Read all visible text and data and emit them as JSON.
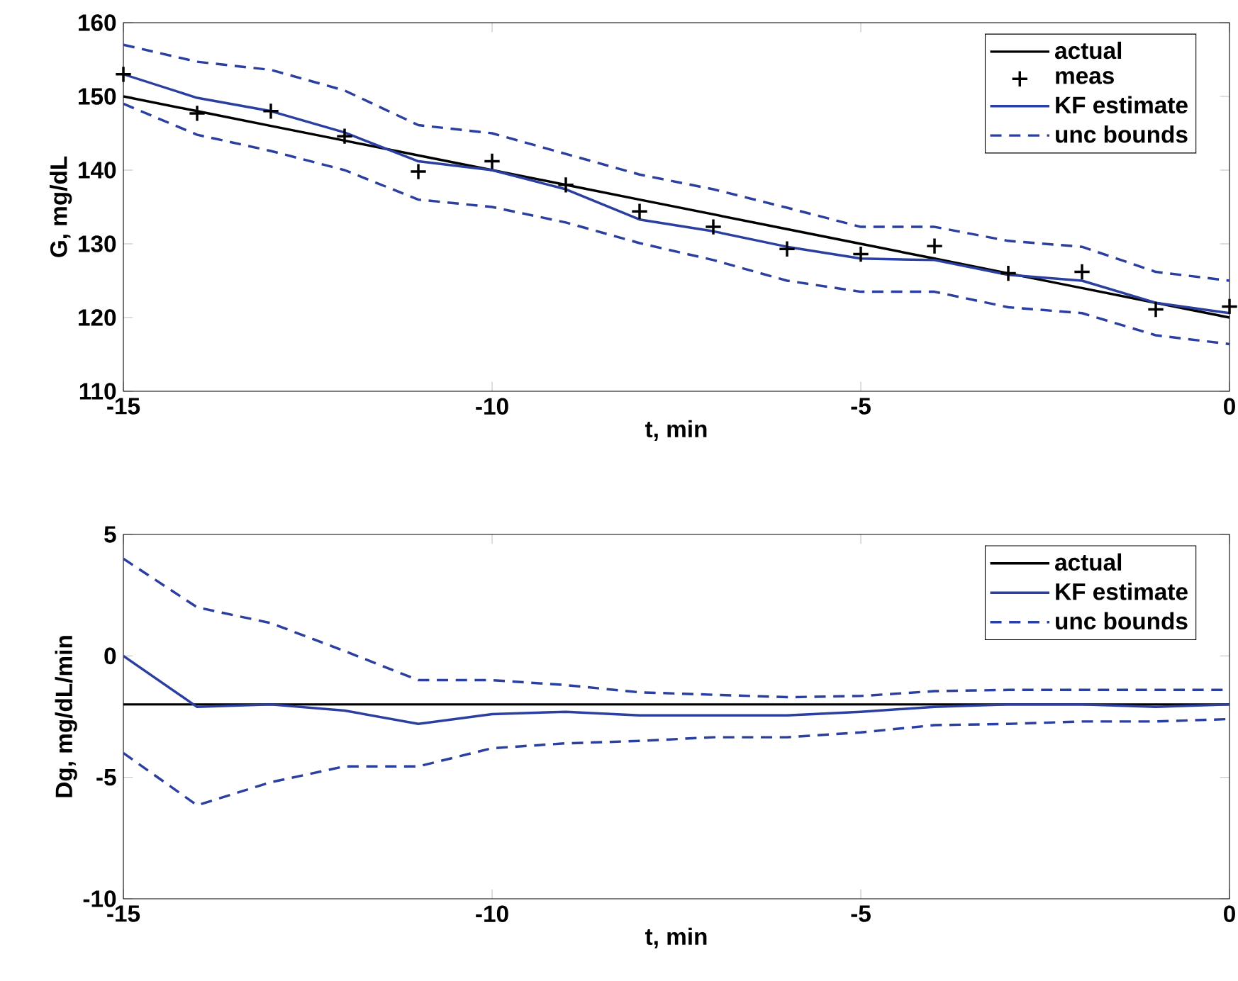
{
  "chart_data": [
    {
      "type": "line",
      "xlabel": "t, min",
      "ylabel": "G, mg/dL",
      "x": [
        -15,
        -14,
        -13,
        -12,
        -11,
        -10,
        -9,
        -8,
        -7,
        -6,
        -5,
        -4,
        -3,
        -2,
        -1,
        0
      ],
      "xlim": [
        -15,
        0
      ],
      "xticks": [
        -15,
        -10,
        -5,
        0
      ],
      "ylim": [
        110,
        160
      ],
      "yticks": [
        110,
        120,
        130,
        140,
        150,
        160
      ],
      "legend": "top right",
      "series": [
        {
          "name": "actual",
          "color": "#000000",
          "line_style": "solid",
          "values": [
            150,
            148,
            146,
            144,
            142,
            140,
            138,
            136,
            134,
            132,
            130,
            128,
            126,
            124,
            122,
            120
          ]
        },
        {
          "name": "meas",
          "type": "scatter",
          "marker": "cross",
          "color": "#000000",
          "values": [
            153,
            147.7,
            148,
            144.6,
            139.8,
            141.2,
            138,
            134.4,
            132.3,
            129.3,
            128.6,
            129.7,
            126,
            126.2,
            121.1,
            121.5
          ]
        },
        {
          "name": "KF estimate",
          "color": "#2b3fa0",
          "line_style": "solid",
          "values": [
            153,
            149.8,
            148,
            145.1,
            141.2,
            140,
            137.4,
            133.3,
            131.7,
            129.6,
            128,
            127.8,
            125.8,
            125,
            122,
            120.6
          ]
        },
        {
          "name": "unc bounds",
          "color": "#2b3fa0",
          "line_style": "dashed",
          "values": [
            157,
            154.7,
            153.6,
            150.8,
            146.1,
            145,
            142.2,
            139.4,
            137.4,
            134.9,
            132.3,
            132.3,
            130.4,
            129.6,
            126.2,
            125
          ]
        },
        {
          "color": "#2b3fa0",
          "line_style": "dashed",
          "values": [
            149,
            144.8,
            142.6,
            140,
            136,
            135,
            132.9,
            130.1,
            127.8,
            125,
            123.5,
            123.5,
            121.4,
            120.6,
            117.6,
            116.4
          ]
        }
      ]
    },
    {
      "type": "line",
      "xlabel": "t, min",
      "ylabel": "Dg, mg/dL/min",
      "x": [
        -15,
        -14,
        -13,
        -12,
        -11,
        -10,
        -9,
        -8,
        -7,
        -6,
        -5,
        -4,
        -3,
        -2,
        -1,
        0
      ],
      "xlim": [
        -15,
        0
      ],
      "xticks": [
        -15,
        -10,
        -5,
        0
      ],
      "ylim": [
        -10,
        5
      ],
      "yticks": [
        -10,
        -5,
        0,
        5
      ],
      "legend": "top right",
      "series": [
        {
          "name": "actual",
          "color": "#000000",
          "line_style": "solid",
          "values": [
            -2,
            -2,
            -2,
            -2,
            -2,
            -2,
            -2,
            -2,
            -2,
            -2,
            -2,
            -2,
            -2,
            -2,
            -2,
            -2
          ]
        },
        {
          "name": "KF estimate",
          "color": "#2b3fa0",
          "line_style": "solid",
          "values": [
            0,
            -2.1,
            -2,
            -2.25,
            -2.8,
            -2.4,
            -2.3,
            -2.45,
            -2.45,
            -2.45,
            -2.3,
            -2.1,
            -2,
            -2,
            -2.1,
            -2
          ]
        },
        {
          "name": "unc bounds",
          "color": "#2b3fa0",
          "line_style": "dashed",
          "values": [
            4,
            2,
            1.35,
            0.2,
            -1,
            -1,
            -1.2,
            -1.5,
            -1.6,
            -1.7,
            -1.65,
            -1.45,
            -1.4,
            -1.4,
            -1.4,
            -1.4
          ]
        },
        {
          "color": "#2b3fa0",
          "line_style": "dashed",
          "values": [
            -4,
            -6.15,
            -5.2,
            -4.55,
            -4.55,
            -3.8,
            -3.6,
            -3.5,
            -3.35,
            -3.35,
            -3.15,
            -2.85,
            -2.8,
            -2.7,
            -2.7,
            -2.6
          ]
        }
      ]
    }
  ]
}
